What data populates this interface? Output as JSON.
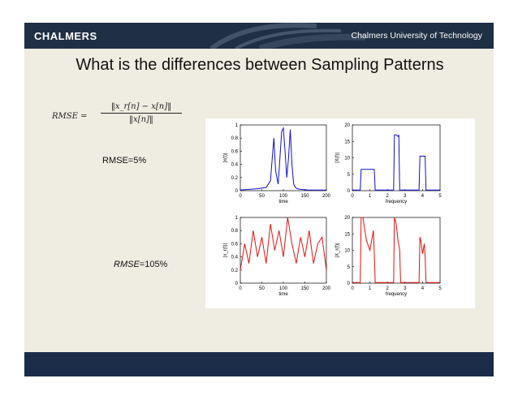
{
  "header": {
    "logo": "CHALMERS",
    "university": "Chalmers University of Technology"
  },
  "title": "What is the differences between Sampling Patterns",
  "formula": {
    "lhs": "RMSE =",
    "numerator": "‖x_r[n] − x[n]‖",
    "denominator": "‖x[n]‖"
  },
  "labels": {
    "rmse_top": "RMSE=5%",
    "rmse_bottom_var": "RMSE",
    "rmse_bottom_val": "=105%"
  },
  "colors": {
    "top_series": "#1010c8",
    "bottom_series": "#e01010",
    "header_bg": "#1f2f44",
    "footer_bg": "#1a2c48",
    "slide_bg": "#efece1"
  },
  "chart_data": [
    {
      "type": "line",
      "panel": "top-left",
      "xlabel": "time",
      "ylabel": "|x(t)|",
      "xlim": [
        0,
        200
      ],
      "ylim": [
        0,
        1
      ],
      "xticks": [
        "0",
        "50",
        "100",
        "150",
        "200"
      ],
      "yticks": [
        "0",
        "0.2",
        "0.4",
        "0.6",
        "0.8",
        "1"
      ],
      "color": "blue",
      "series": [
        {
          "x": [
            0,
            20,
            40,
            60,
            70,
            78,
            82,
            88,
            92,
            96,
            100,
            104,
            108,
            112,
            116,
            120,
            124,
            128,
            132,
            140,
            160,
            180,
            200
          ],
          "values": [
            0.01,
            0.02,
            0.03,
            0.05,
            0.15,
            0.8,
            0.3,
            0.1,
            0.5,
            0.9,
            0.95,
            0.6,
            0.2,
            0.5,
            0.93,
            0.4,
            0.1,
            0.05,
            0.03,
            0.02,
            0.01,
            0.01,
            0.01
          ]
        }
      ]
    },
    {
      "type": "line",
      "panel": "top-right",
      "xlabel": "frequency",
      "ylabel": "|X(f)|",
      "xlim": [
        0,
        5
      ],
      "ylim": [
        0,
        20
      ],
      "xticks": [
        "0",
        "1",
        "2",
        "3",
        "4",
        "5"
      ],
      "yticks": [
        "0",
        "5",
        "10",
        "15",
        "20"
      ],
      "color": "blue",
      "series": [
        {
          "x": [
            0,
            0.45,
            0.5,
            0.6,
            0.8,
            1.0,
            1.2,
            1.25,
            1.3,
            2.2,
            2.35,
            2.4,
            2.5,
            2.6,
            2.65,
            2.7,
            3.6,
            3.8,
            3.85,
            3.9,
            4.0,
            4.1,
            4.15,
            4.2,
            5.0
          ],
          "values": [
            0.2,
            0.2,
            6.5,
            6.5,
            6.5,
            6.5,
            6.5,
            6.5,
            0.2,
            0.2,
            0.2,
            17,
            17,
            16.5,
            17,
            0.2,
            0.2,
            0.2,
            10.5,
            10.5,
            10.5,
            10.5,
            10.5,
            0.2,
            0.2
          ]
        }
      ]
    },
    {
      "type": "line",
      "panel": "bottom-left",
      "xlabel": "time",
      "ylabel": "|x_r(t)|",
      "xlim": [
        0,
        200
      ],
      "ylim": [
        0,
        1
      ],
      "xticks": [
        "0",
        "50",
        "100",
        "150",
        "200"
      ],
      "yticks": [
        "0",
        "0.2",
        "0.4",
        "0.6",
        "0.8",
        "1"
      ],
      "color": "red",
      "series": [
        {
          "x": [
            0,
            10,
            20,
            30,
            40,
            50,
            60,
            70,
            80,
            90,
            100,
            110,
            120,
            130,
            140,
            150,
            160,
            170,
            180,
            190,
            200
          ],
          "values": [
            0.2,
            0.6,
            0.3,
            0.8,
            0.4,
            0.7,
            0.3,
            0.9,
            0.5,
            0.8,
            0.4,
            1.0,
            0.6,
            0.3,
            0.7,
            0.4,
            0.8,
            0.3,
            0.6,
            0.7,
            0.2
          ]
        }
      ]
    },
    {
      "type": "line",
      "panel": "bottom-right",
      "xlabel": "frequency",
      "ylabel": "|X_r(f)|",
      "xlim": [
        0,
        5
      ],
      "ylim": [
        0,
        20
      ],
      "xticks": [
        "0",
        "1",
        "2",
        "3",
        "4",
        "5"
      ],
      "yticks": [
        "0",
        "5",
        "10",
        "15",
        "20"
      ],
      "color": "red",
      "series": [
        {
          "x": [
            0,
            0.45,
            0.5,
            0.6,
            0.8,
            1.0,
            1.2,
            1.25,
            1.3,
            2.2,
            2.35,
            2.4,
            2.5,
            2.6,
            2.7,
            2.75,
            3.6,
            3.8,
            3.85,
            3.9,
            4.0,
            4.1,
            4.15,
            4.2,
            5.0
          ],
          "values": [
            0.2,
            0.2,
            20,
            20,
            13,
            10,
            16,
            9,
            0.2,
            0.2,
            0.2,
            20,
            18,
            13,
            10,
            0.2,
            0.2,
            0.2,
            14,
            13,
            9,
            12,
            8,
            0.2,
            0.2
          ]
        }
      ]
    }
  ]
}
